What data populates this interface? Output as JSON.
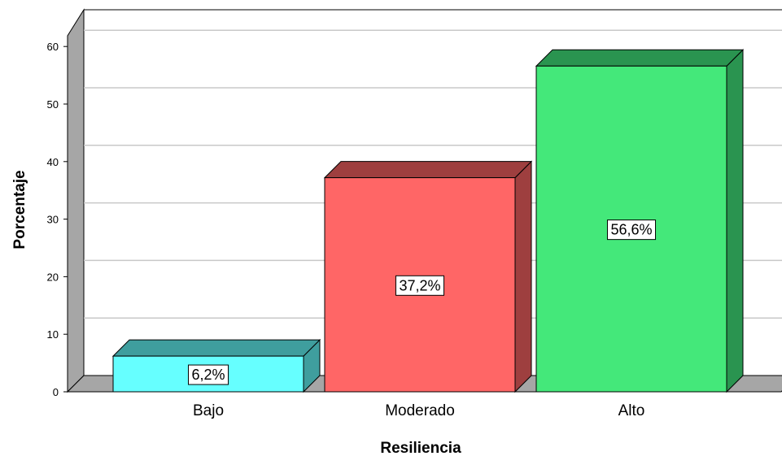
{
  "chart_data": {
    "type": "bar",
    "style": "3d",
    "title": "",
    "xlabel": "Resiliencia",
    "ylabel": "Porcentaje",
    "categories": [
      "Bajo",
      "Moderado",
      "Alto"
    ],
    "values": [
      6.2,
      37.2,
      56.6
    ],
    "data_labels": [
      "6,2%",
      "37,2%",
      "56,6%"
    ],
    "yticks": [
      "0",
      "10",
      "20",
      "30",
      "40",
      "50",
      "60"
    ],
    "ylim": [
      0,
      60
    ],
    "grid": true,
    "legend": "none",
    "colors": {
      "bars": [
        {
          "front": "#66ffff",
          "top": "#3f9e9e",
          "side": "#3f9e9e"
        },
        {
          "front": "#ff6666",
          "top": "#9e3f3f",
          "side": "#9e3f3f"
        },
        {
          "front": "#44e87a",
          "top": "#2a9450",
          "side": "#2a9450"
        }
      ],
      "wall_floor": "#a6a6a6",
      "gridline": "#c8c8c8"
    }
  }
}
